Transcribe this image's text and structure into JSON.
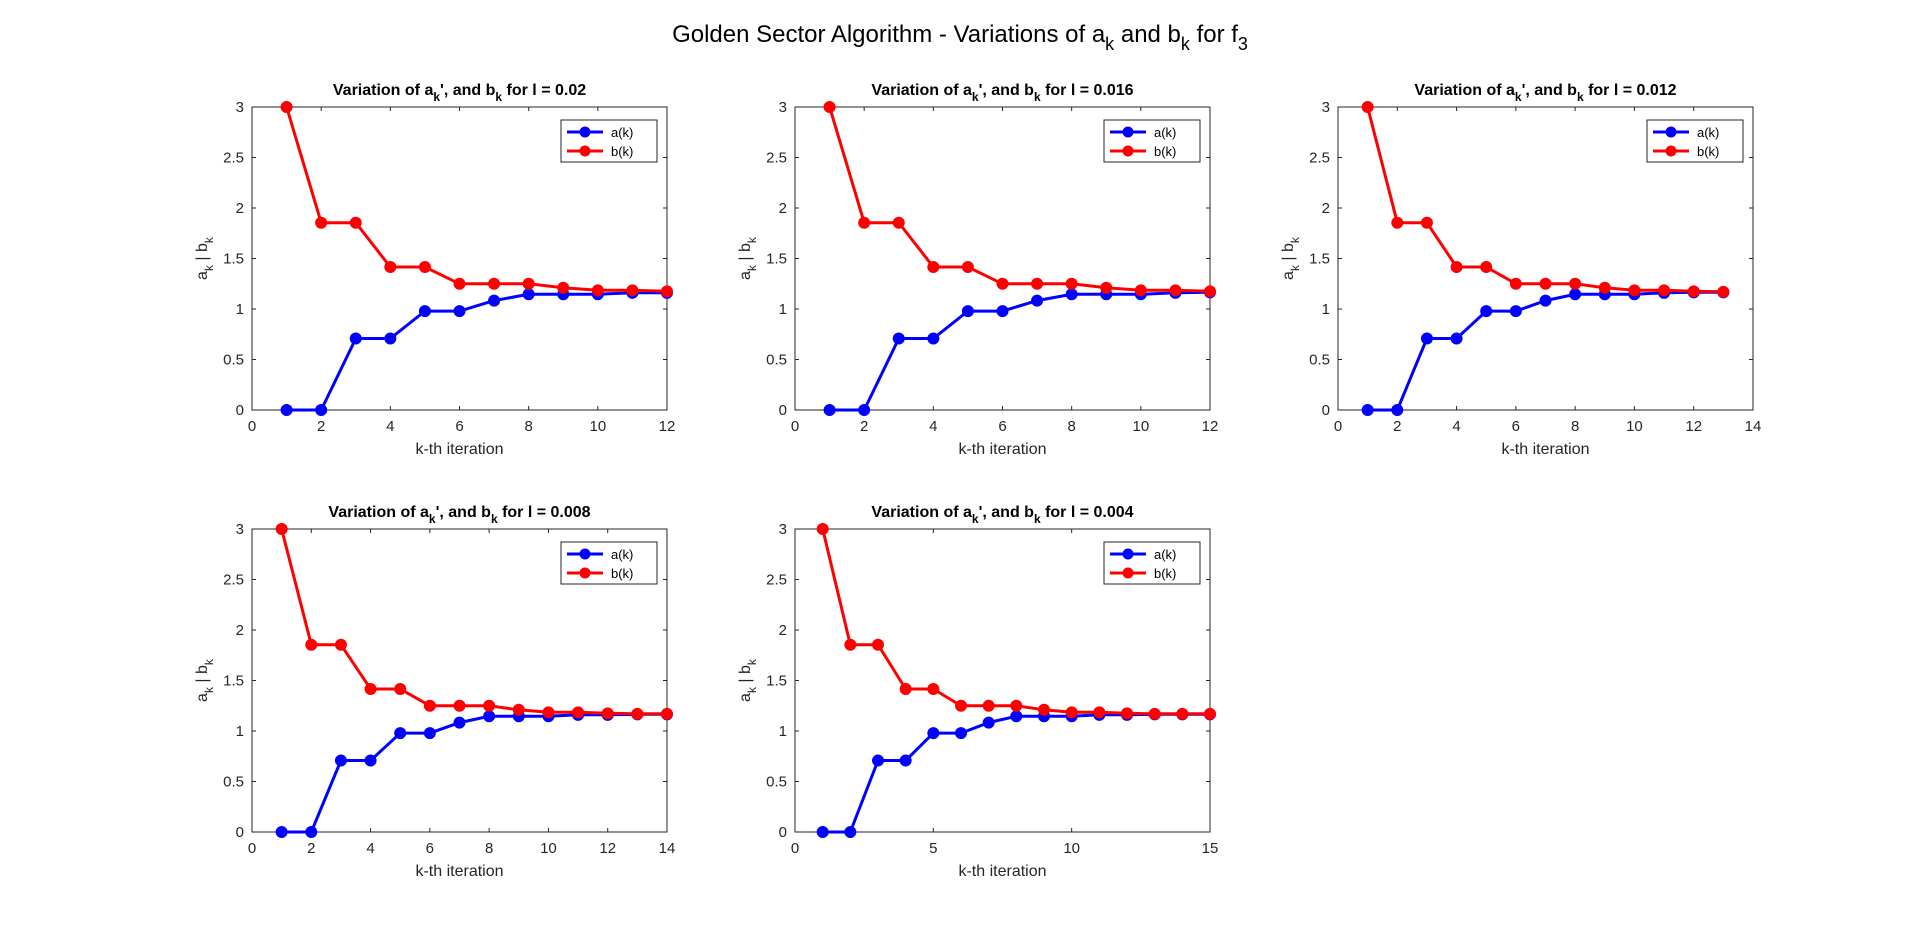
{
  "figure": {
    "title_main": "Golden Sector Algorithm - Variations of a",
    "title_sub1": "k",
    "title_mid": " and b",
    "title_sub2": "k",
    "title_for": " for f",
    "title_sub3": "3"
  },
  "colors": {
    "a_series": "#0000ff",
    "b_series": "#ff0000",
    "axis": "#262626"
  },
  "chart_data": [
    {
      "type": "line",
      "title": "Variation of a_k', and b_k for l = 0.02",
      "title_parts": [
        "Variation of a",
        "k",
        "', and b",
        "k",
        " for l = 0.02"
      ],
      "xlabel": "k-th iteration",
      "ylabel_parts": [
        "a",
        "k",
        " | b",
        "k"
      ],
      "xlim": [
        0,
        12
      ],
      "ylim": [
        0,
        3
      ],
      "xticks": [
        0,
        2,
        4,
        6,
        8,
        10,
        12
      ],
      "xtick_labels": [
        "0",
        "2",
        "4",
        "6",
        "8",
        "10",
        "12"
      ],
      "yticks": [
        0,
        0.5,
        1,
        1.5,
        2,
        2.5,
        3
      ],
      "ytick_labels": [
        "0",
        "0.5",
        "1",
        "1.5",
        "2",
        "2.5",
        "3"
      ],
      "legend_position": "top-right",
      "series": [
        {
          "name": "a(k)",
          "x": [
            1,
            2,
            3,
            4,
            5,
            6,
            7,
            8,
            9,
            10,
            11,
            12
          ],
          "values": [
            0,
            0,
            0.708,
            0.708,
            0.979,
            0.979,
            1.083,
            1.146,
            1.146,
            1.146,
            1.16,
            1.16
          ]
        },
        {
          "name": "b(k)",
          "x": [
            1,
            2,
            3,
            4,
            5,
            6,
            7,
            8,
            9,
            10,
            11,
            12
          ],
          "values": [
            3,
            1.854,
            1.854,
            1.416,
            1.416,
            1.25,
            1.25,
            1.25,
            1.21,
            1.185,
            1.185,
            1.175
          ]
        }
      ]
    },
    {
      "type": "line",
      "title": "Variation of a_k', and b_k for l = 0.016",
      "title_parts": [
        "Variation of a",
        "k",
        "', and b",
        "k",
        " for l = 0.016"
      ],
      "xlabel": "k-th iteration",
      "ylabel_parts": [
        "a",
        "k",
        " | b",
        "k"
      ],
      "xlim": [
        0,
        12
      ],
      "ylim": [
        0,
        3
      ],
      "xticks": [
        0,
        2,
        4,
        6,
        8,
        10,
        12
      ],
      "xtick_labels": [
        "0",
        "2",
        "4",
        "6",
        "8",
        "10",
        "12"
      ],
      "yticks": [
        0,
        0.5,
        1,
        1.5,
        2,
        2.5,
        3
      ],
      "ytick_labels": [
        "0",
        "0.5",
        "1",
        "1.5",
        "2",
        "2.5",
        "3"
      ],
      "legend_position": "top-right",
      "series": [
        {
          "name": "a(k)",
          "x": [
            1,
            2,
            3,
            4,
            5,
            6,
            7,
            8,
            9,
            10,
            11,
            12
          ],
          "values": [
            0,
            0,
            0.708,
            0.708,
            0.979,
            0.979,
            1.083,
            1.146,
            1.146,
            1.146,
            1.16,
            1.165
          ]
        },
        {
          "name": "b(k)",
          "x": [
            1,
            2,
            3,
            4,
            5,
            6,
            7,
            8,
            9,
            10,
            11,
            12
          ],
          "values": [
            3,
            1.854,
            1.854,
            1.416,
            1.416,
            1.25,
            1.25,
            1.25,
            1.21,
            1.185,
            1.185,
            1.175
          ]
        }
      ]
    },
    {
      "type": "line",
      "title": "Variation of a_k', and b_k for l = 0.012",
      "title_parts": [
        "Variation of a",
        "k",
        "', and b",
        "k",
        " for l = 0.012"
      ],
      "xlabel": "k-th iteration",
      "ylabel_parts": [
        "a",
        "k",
        " | b",
        "k"
      ],
      "xlim": [
        0,
        14
      ],
      "ylim": [
        0,
        3
      ],
      "xticks": [
        0,
        2,
        4,
        6,
        8,
        10,
        12,
        14
      ],
      "xtick_labels": [
        "0",
        "2",
        "4",
        "6",
        "8",
        "10",
        "12",
        "14"
      ],
      "yticks": [
        0,
        0.5,
        1,
        1.5,
        2,
        2.5,
        3
      ],
      "ytick_labels": [
        "0",
        "0.5",
        "1",
        "1.5",
        "2",
        "2.5",
        "3"
      ],
      "legend_position": "top-right",
      "series": [
        {
          "name": "a(k)",
          "x": [
            1,
            2,
            3,
            4,
            5,
            6,
            7,
            8,
            9,
            10,
            11,
            12,
            13
          ],
          "values": [
            0,
            0,
            0.708,
            0.708,
            0.979,
            0.979,
            1.083,
            1.146,
            1.146,
            1.146,
            1.16,
            1.165,
            1.165
          ]
        },
        {
          "name": "b(k)",
          "x": [
            1,
            2,
            3,
            4,
            5,
            6,
            7,
            8,
            9,
            10,
            11,
            12,
            13
          ],
          "values": [
            3,
            1.854,
            1.854,
            1.416,
            1.416,
            1.25,
            1.25,
            1.25,
            1.21,
            1.185,
            1.185,
            1.175,
            1.17
          ]
        }
      ]
    },
    {
      "type": "line",
      "title": "Variation of a_k', and b_k for l = 0.008",
      "title_parts": [
        "Variation of a",
        "k",
        "', and b",
        "k",
        " for l = 0.008"
      ],
      "xlabel": "k-th iteration",
      "ylabel_parts": [
        "a",
        "k",
        " | b",
        "k"
      ],
      "xlim": [
        0,
        14
      ],
      "ylim": [
        0,
        3
      ],
      "xticks": [
        0,
        2,
        4,
        6,
        8,
        10,
        12,
        14
      ],
      "xtick_labels": [
        "0",
        "2",
        "4",
        "6",
        "8",
        "10",
        "12",
        "14"
      ],
      "yticks": [
        0,
        0.5,
        1,
        1.5,
        2,
        2.5,
        3
      ],
      "ytick_labels": [
        "0",
        "0.5",
        "1",
        "1.5",
        "2",
        "2.5",
        "3"
      ],
      "legend_position": "top-right",
      "series": [
        {
          "name": "a(k)",
          "x": [
            1,
            2,
            3,
            4,
            5,
            6,
            7,
            8,
            9,
            10,
            11,
            12,
            13,
            14
          ],
          "values": [
            0,
            0,
            0.708,
            0.708,
            0.979,
            0.979,
            1.083,
            1.146,
            1.146,
            1.146,
            1.16,
            1.16,
            1.165,
            1.165
          ]
        },
        {
          "name": "b(k)",
          "x": [
            1,
            2,
            3,
            4,
            5,
            6,
            7,
            8,
            9,
            10,
            11,
            12,
            13,
            14
          ],
          "values": [
            3,
            1.854,
            1.854,
            1.416,
            1.416,
            1.25,
            1.25,
            1.25,
            1.21,
            1.185,
            1.185,
            1.175,
            1.17,
            1.17
          ]
        }
      ]
    },
    {
      "type": "line",
      "title": "Variation of a_k', and b_k for l = 0.004",
      "title_parts": [
        "Variation of a",
        "k",
        "', and b",
        "k",
        " for l = 0.004"
      ],
      "xlabel": "k-th iteration",
      "ylabel_parts": [
        "a",
        "k",
        " | b",
        "k"
      ],
      "xlim": [
        0,
        15
      ],
      "ylim": [
        0,
        3
      ],
      "xticks": [
        0,
        5,
        10,
        15
      ],
      "xtick_labels": [
        "0",
        "5",
        "10",
        "15"
      ],
      "yticks": [
        0,
        0.5,
        1,
        1.5,
        2,
        2.5,
        3
      ],
      "ytick_labels": [
        "0",
        "0.5",
        "1",
        "1.5",
        "2",
        "2.5",
        "3"
      ],
      "legend_position": "top-right",
      "series": [
        {
          "name": "a(k)",
          "x": [
            1,
            2,
            3,
            4,
            5,
            6,
            7,
            8,
            9,
            10,
            11,
            12,
            13,
            14,
            15
          ],
          "values": [
            0,
            0,
            0.708,
            0.708,
            0.979,
            0.979,
            1.083,
            1.146,
            1.146,
            1.146,
            1.16,
            1.16,
            1.165,
            1.165,
            1.165
          ]
        },
        {
          "name": "b(k)",
          "x": [
            1,
            2,
            3,
            4,
            5,
            6,
            7,
            8,
            9,
            10,
            11,
            12,
            13,
            14,
            15
          ],
          "values": [
            3,
            1.854,
            1.854,
            1.416,
            1.416,
            1.25,
            1.25,
            1.25,
            1.21,
            1.185,
            1.185,
            1.175,
            1.17,
            1.17,
            1.17
          ]
        }
      ]
    }
  ]
}
